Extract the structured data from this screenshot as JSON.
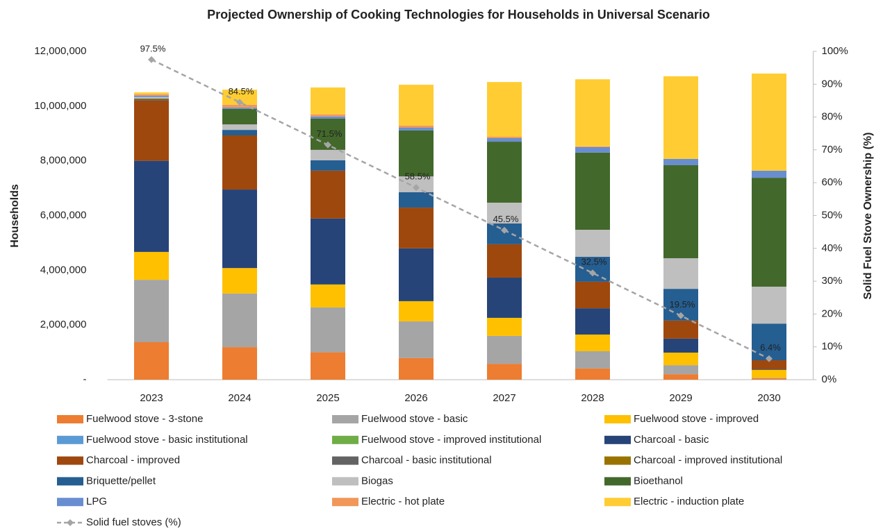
{
  "chart_data": {
    "type": "bar",
    "stacked": true,
    "title": "Projected Ownership of Cooking Technologies for Households in Universal Scenario",
    "ylabel": "Households",
    "y2label": "Solid Fuel Stove Ownership (%)",
    "categories": [
      "2023",
      "2024",
      "2025",
      "2026",
      "2027",
      "2028",
      "2029",
      "2030"
    ],
    "ylim": [
      0,
      12000000
    ],
    "yticks": [
      {
        "value": 0,
        "label": "-"
      },
      {
        "value": 2000000,
        "label": "2,000,000"
      },
      {
        "value": 4000000,
        "label": "4,000,000"
      },
      {
        "value": 6000000,
        "label": "6,000,000"
      },
      {
        "value": 8000000,
        "label": "8,000,000"
      },
      {
        "value": 10000000,
        "label": "10,000,000"
      },
      {
        "value": 12000000,
        "label": "12,000,000"
      }
    ],
    "y2lim": [
      0,
      100
    ],
    "y2ticks": [
      {
        "value": 0,
        "label": "0%"
      },
      {
        "value": 10,
        "label": "10%"
      },
      {
        "value": 20,
        "label": "20%"
      },
      {
        "value": 30,
        "label": "30%"
      },
      {
        "value": 40,
        "label": "40%"
      },
      {
        "value": 50,
        "label": "50%"
      },
      {
        "value": 60,
        "label": "60%"
      },
      {
        "value": 70,
        "label": "70%"
      },
      {
        "value": 80,
        "label": "80%"
      },
      {
        "value": 90,
        "label": "90%"
      },
      {
        "value": 100,
        "label": "100%"
      }
    ],
    "series": [
      {
        "name": "Fuelwood stove - 3-stone",
        "color": "#ed7d31",
        "values": [
          1370000,
          1190000,
          1000000,
          790000,
          580000,
          410000,
          200000,
          50000
        ]
      },
      {
        "name": "Fuelwood stove - basic",
        "color": "#a5a5a5",
        "values": [
          2280000,
          1960000,
          1640000,
          1340000,
          1020000,
          630000,
          330000,
          20000
        ]
      },
      {
        "name": "Fuelwood stove - improved",
        "color": "#ffc000",
        "values": [
          1020000,
          930000,
          840000,
          740000,
          660000,
          610000,
          460000,
          290000
        ]
      },
      {
        "name": "Fuelwood stove - basic institutional",
        "color": "#5b9bd5",
        "values": [
          0,
          0,
          0,
          0,
          0,
          0,
          0,
          0
        ]
      },
      {
        "name": "Fuelwood stove - improved institutional",
        "color": "#70ad47",
        "values": [
          0,
          0,
          0,
          0,
          0,
          0,
          0,
          0
        ]
      },
      {
        "name": "Charcoal - basic",
        "color": "#264478",
        "values": [
          3330000,
          2870000,
          2410000,
          1930000,
          1470000,
          960000,
          510000,
          20000
        ]
      },
      {
        "name": "Charcoal - improved",
        "color": "#9e480e",
        "values": [
          2200000,
          1980000,
          1750000,
          1490000,
          1220000,
          970000,
          660000,
          330000
        ]
      },
      {
        "name": "Charcoal - basic institutional",
        "color": "#636363",
        "values": [
          50000,
          0,
          0,
          0,
          0,
          0,
          0,
          0
        ]
      },
      {
        "name": "Charcoal - improved institutional",
        "color": "#997300",
        "values": [
          30000,
          0,
          0,
          0,
          0,
          0,
          0,
          0
        ]
      },
      {
        "name": "Briquette/pellet",
        "color": "#255e91",
        "values": [
          0,
          200000,
          380000,
          560000,
          760000,
          910000,
          1160000,
          1340000
        ]
      },
      {
        "name": "Biogas",
        "color": "#bfbfbf",
        "values": [
          50000,
          200000,
          380000,
          580000,
          760000,
          990000,
          1120000,
          1350000
        ]
      },
      {
        "name": "Bioethanol",
        "color": "#43682b",
        "values": [
          0,
          570000,
          1140000,
          1680000,
          2230000,
          2820000,
          3400000,
          3980000
        ]
      },
      {
        "name": "LPG",
        "color": "#698ed0",
        "values": [
          50000,
          50000,
          80000,
          100000,
          130000,
          200000,
          230000,
          260000
        ]
      },
      {
        "name": "Electric - hot plate",
        "color": "#f1975a",
        "values": [
          50000,
          100000,
          80000,
          80000,
          50000,
          30000,
          0,
          0
        ]
      },
      {
        "name": "Electric - induction plate",
        "color": "#ffcd33",
        "values": [
          70000,
          550000,
          980000,
          1490000,
          2000000,
          2450000,
          3020000,
          3550000
        ]
      },
      {
        "name": "Solid fuel stoves (%)",
        "type": "line",
        "axis": "y2",
        "color": "#a5a5a5",
        "values": [
          97.5,
          84.5,
          71.5,
          58.5,
          45.5,
          32.5,
          19.5,
          6.4
        ],
        "value_labels": [
          "97.5%",
          "84.5%",
          "71.5%",
          "58.5%",
          "45.5%",
          "32.5%",
          "19.5%",
          "6.4%"
        ]
      }
    ]
  }
}
